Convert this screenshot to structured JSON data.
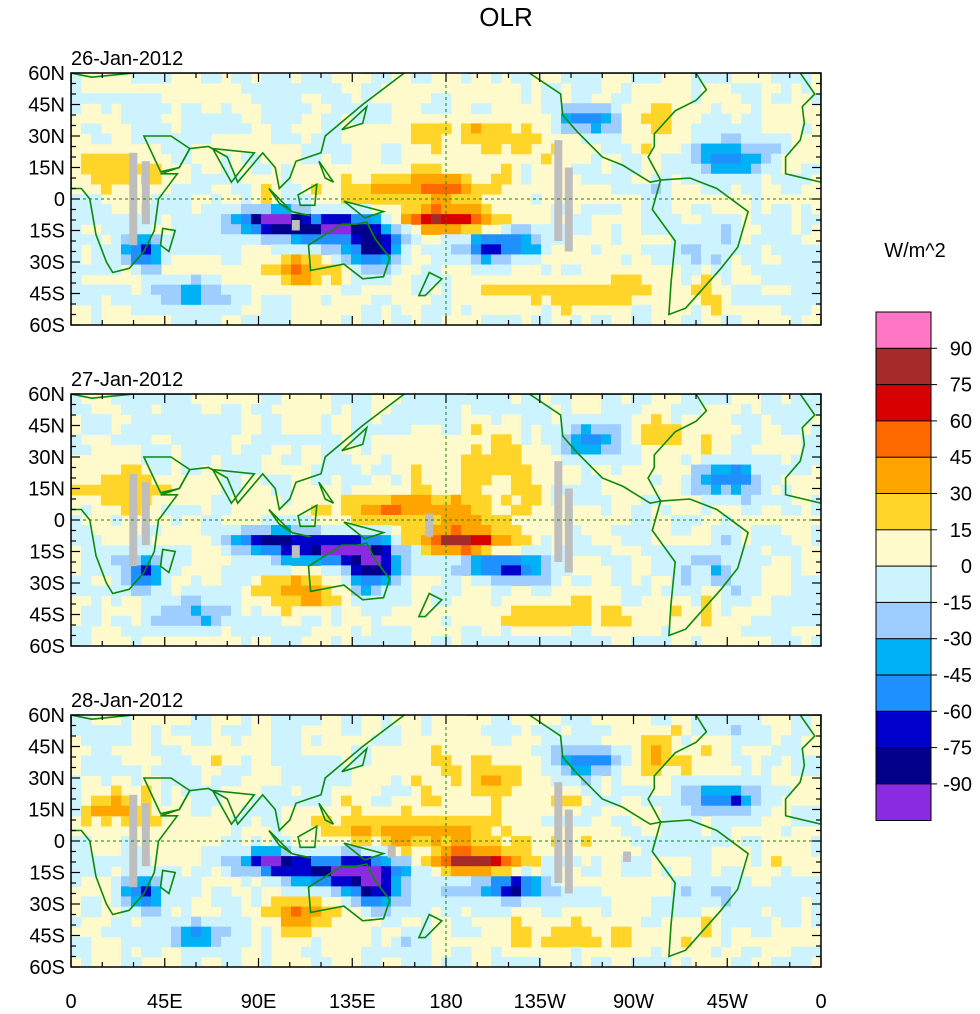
{
  "chart_data": {
    "type": "heatmap",
    "title": "OLR",
    "variable": "OLR",
    "units": "W/m^2",
    "panels": [
      {
        "date": "26-Jan-2012"
      },
      {
        "date": "27-Jan-2012"
      },
      {
        "date": "28-Jan-2012"
      }
    ],
    "x_ticks": [
      "0",
      "45E",
      "90E",
      "135E",
      "180",
      "135W",
      "90W",
      "45W",
      "0"
    ],
    "y_ticks": [
      "60N",
      "45N",
      "30N",
      "15N",
      "0",
      "15S",
      "30S",
      "45S",
      "60S"
    ],
    "x_range": [
      0,
      360
    ],
    "y_range": [
      -60,
      60
    ],
    "colorbar": {
      "label": "W/m^2",
      "levels": [
        "90",
        "75",
        "60",
        "45",
        "30",
        "15",
        "0",
        "-15",
        "-30",
        "-45",
        "-60",
        "-75",
        "-90"
      ],
      "colors": [
        "#ff77c4",
        "#a52a2a",
        "#d80000",
        "#ff6a00",
        "#ffa500",
        "#ffd52a",
        "#fffacb",
        "#cdf3ff",
        "#9ecdff",
        "#00b2f5",
        "#1e90ff",
        "#0000cd",
        "#00008b",
        "#8a2be2"
      ]
    },
    "land_outline_color": "#0b8a0b",
    "missing_color": "#bebebe"
  }
}
